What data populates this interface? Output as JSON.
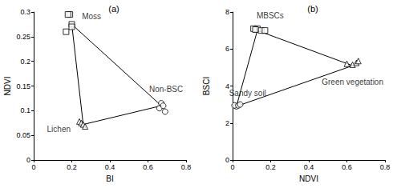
{
  "chart_data": [
    {
      "type": "scatter",
      "title": "(a)",
      "x_label": "BI",
      "y_label": "NDVI",
      "xlim": [
        0,
        0.8
      ],
      "xticks": [
        0,
        0.2,
        0.4,
        0.6,
        0.8
      ],
      "ylim": [
        0,
        0.3
      ],
      "yticks": [
        0,
        0.05,
        0.1,
        0.15,
        0.2,
        0.25,
        0.3
      ],
      "grid": false,
      "series": [
        {
          "name": "Moss",
          "type": "scatter",
          "marker": "square",
          "color": "#000000",
          "x": [
            0.19,
            0.18,
            0.2,
            0.17,
            0.2
          ],
          "values": [
            0.295,
            0.295,
            0.275,
            0.26,
            0.27
          ]
        },
        {
          "name": "Lichen",
          "type": "scatter",
          "marker": "triangle",
          "color": "#000000",
          "x": [
            0.24,
            0.25,
            0.26,
            0.27
          ],
          "values": [
            0.078,
            0.075,
            0.072,
            0.068
          ]
        },
        {
          "name": "Non-BSC",
          "type": "scatter",
          "marker": "circle",
          "color": "#000000",
          "x": [
            0.67,
            0.66,
            0.68,
            0.69
          ],
          "values": [
            0.115,
            0.105,
            0.11,
            0.098
          ]
        },
        {
          "type": "line",
          "line_style": "solid",
          "color": "#000000",
          "x": [
            0.2,
            0.26,
            0.67,
            0.2
          ],
          "values": [
            0.275,
            0.072,
            0.11,
            0.275
          ]
        }
      ]
    },
    {
      "type": "scatter",
      "title": "(b)",
      "x_label": "NDVI",
      "y_label": "BSCI",
      "xlim": [
        0,
        0.8
      ],
      "xticks": [
        0,
        0.2,
        0.4,
        0.6,
        0.8
      ],
      "ylim": [
        0,
        8
      ],
      "yticks": [
        0,
        2,
        4,
        6,
        8
      ],
      "grid": false,
      "series": [
        {
          "name": "MBSCs",
          "type": "scatter",
          "marker": "square",
          "color": "#000000",
          "x": [
            0.13,
            0.11,
            0.12,
            0.15,
            0.17
          ],
          "values": [
            7.1,
            7.1,
            7.05,
            7.0,
            7.0
          ]
        },
        {
          "name": "Green vegetation",
          "type": "scatter",
          "marker": "triangle",
          "color": "#000000",
          "x": [
            0.63,
            0.6,
            0.65,
            0.66
          ],
          "values": [
            5.15,
            5.2,
            5.25,
            5.35
          ]
        },
        {
          "name": "Sandy soil",
          "type": "scatter",
          "marker": "circle",
          "color": "#000000",
          "x": [
            0.02,
            0.01,
            0.03,
            0.04
          ],
          "values": [
            2.9,
            2.95,
            2.95,
            3.0
          ]
        },
        {
          "type": "line",
          "line_style": "solid",
          "color": "#000000",
          "x": [
            0.13,
            0.63,
            0.02,
            0.13
          ],
          "values": [
            7.0,
            5.1,
            2.9,
            7.0
          ]
        }
      ]
    }
  ]
}
